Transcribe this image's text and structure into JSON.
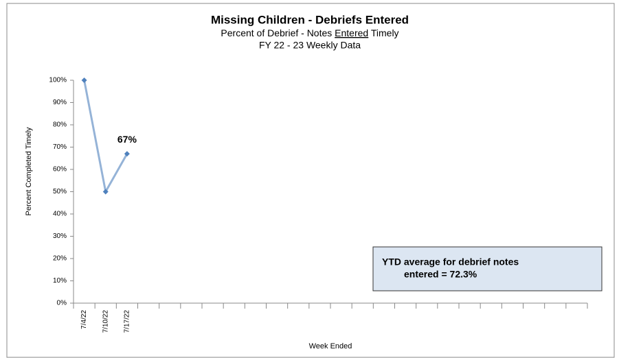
{
  "chart_data": {
    "type": "line",
    "title": "Missing Children - Debriefs Entered",
    "subtitle": [
      "Percent of Debrief - Notes ",
      "Entered",
      " Timely"
    ],
    "subtitle2": "FY 22 - 23  Weekly Data",
    "x_label": "Week Ended",
    "y_label": "Percent Completed Timely",
    "categories": [
      "7/4/22",
      "7/10/22",
      "7/17/22",
      null,
      null,
      null,
      null,
      null,
      null,
      null,
      null,
      null,
      null,
      null,
      null,
      null,
      null,
      null,
      null,
      null,
      null,
      null,
      null,
      null
    ],
    "values": [
      100,
      50,
      67,
      null,
      null,
      null,
      null,
      null,
      null,
      null,
      null,
      null,
      null,
      null,
      null,
      null,
      null,
      null,
      null,
      null,
      null,
      null,
      null,
      null
    ],
    "value_labels": [
      null,
      null,
      "67%",
      null,
      null,
      null,
      null,
      null,
      null,
      null,
      null,
      null,
      null,
      null,
      null,
      null,
      null,
      null,
      null,
      null,
      null,
      null,
      null,
      null
    ],
    "line_color": "#95b3d7",
    "marker_color": "#4f81bd",
    "ylim": [
      0,
      100
    ],
    "yticks": [
      {
        "value": 0,
        "label": "0%"
      },
      {
        "value": 10,
        "label": "10%"
      },
      {
        "value": 20,
        "label": "20%"
      },
      {
        "value": 30,
        "label": "30%"
      },
      {
        "value": 40,
        "label": "40%"
      },
      {
        "value": 50,
        "label": "50%"
      },
      {
        "value": 60,
        "label": "60%"
      },
      {
        "value": 70,
        "label": "70%"
      },
      {
        "value": 80,
        "label": "80%"
      },
      {
        "value": 90,
        "label": "90%"
      },
      {
        "value": 100,
        "label": "100%"
      }
    ],
    "annotation": [
      "YTD average for debrief notes",
      "entered = 72.3%"
    ]
  }
}
